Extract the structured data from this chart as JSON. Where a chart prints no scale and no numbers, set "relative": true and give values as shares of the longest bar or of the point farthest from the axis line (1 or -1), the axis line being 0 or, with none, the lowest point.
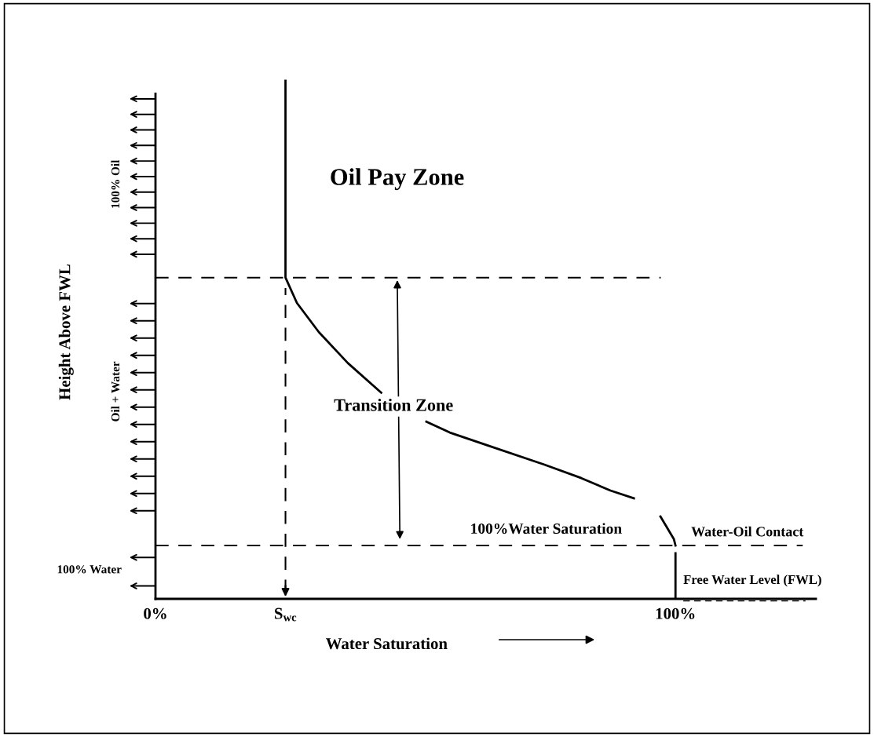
{
  "chart_data": {
    "type": "line",
    "relative": true,
    "xlabel": "Water Saturation",
    "ylabel": "Height Above FWL",
    "x": [
      25,
      25,
      27.2,
      31.4,
      37.0,
      43.4,
      null,
      52.1,
      56.6,
      63.6,
      74.8,
      81.9,
      87.5,
      92.0,
      null,
      97.1,
      99.7,
      100,
      null,
      100,
      100
    ],
    "series": [
      {
        "color": "#000000",
        "values": [
          1.0,
          0.62,
          0.571,
          0.515,
          0.455,
          0.398,
          null,
          0.342,
          0.321,
          0.297,
          0.259,
          0.233,
          0.209,
          0.194,
          null,
          0.159,
          0.115,
          0.103,
          null,
          0.088,
          0
        ]
      }
    ],
    "xlim": [
      0,
      127
    ],
    "xticks": [
      {
        "value": 0,
        "label": "0%"
      },
      {
        "value": 25,
        "label": "S$_{wc}$"
      },
      {
        "value": 100,
        "label": "100%"
      }
    ],
    "ref_lines": [
      {
        "axis": "y",
        "value": 0.62,
        "line_style": "dashed",
        "color": "#000000"
      },
      {
        "axis": "y",
        "value": 0.103,
        "label": "Water-Oil Contact",
        "line_style": "dashed",
        "color": "#000000"
      },
      {
        "axis": "x",
        "value": 25,
        "line_style": "dashed",
        "color": "#000000"
      }
    ],
    "annotations": [
      "Oil Pay Zone",
      "Transition Zone",
      "100%Water Saturation",
      "Free Water Level (FWL)",
      "100% Oil",
      "Oil + Water",
      "100% Water"
    ],
    "grid": false,
    "legend": false,
    "marker": "none",
    "line_style": "solid"
  }
}
